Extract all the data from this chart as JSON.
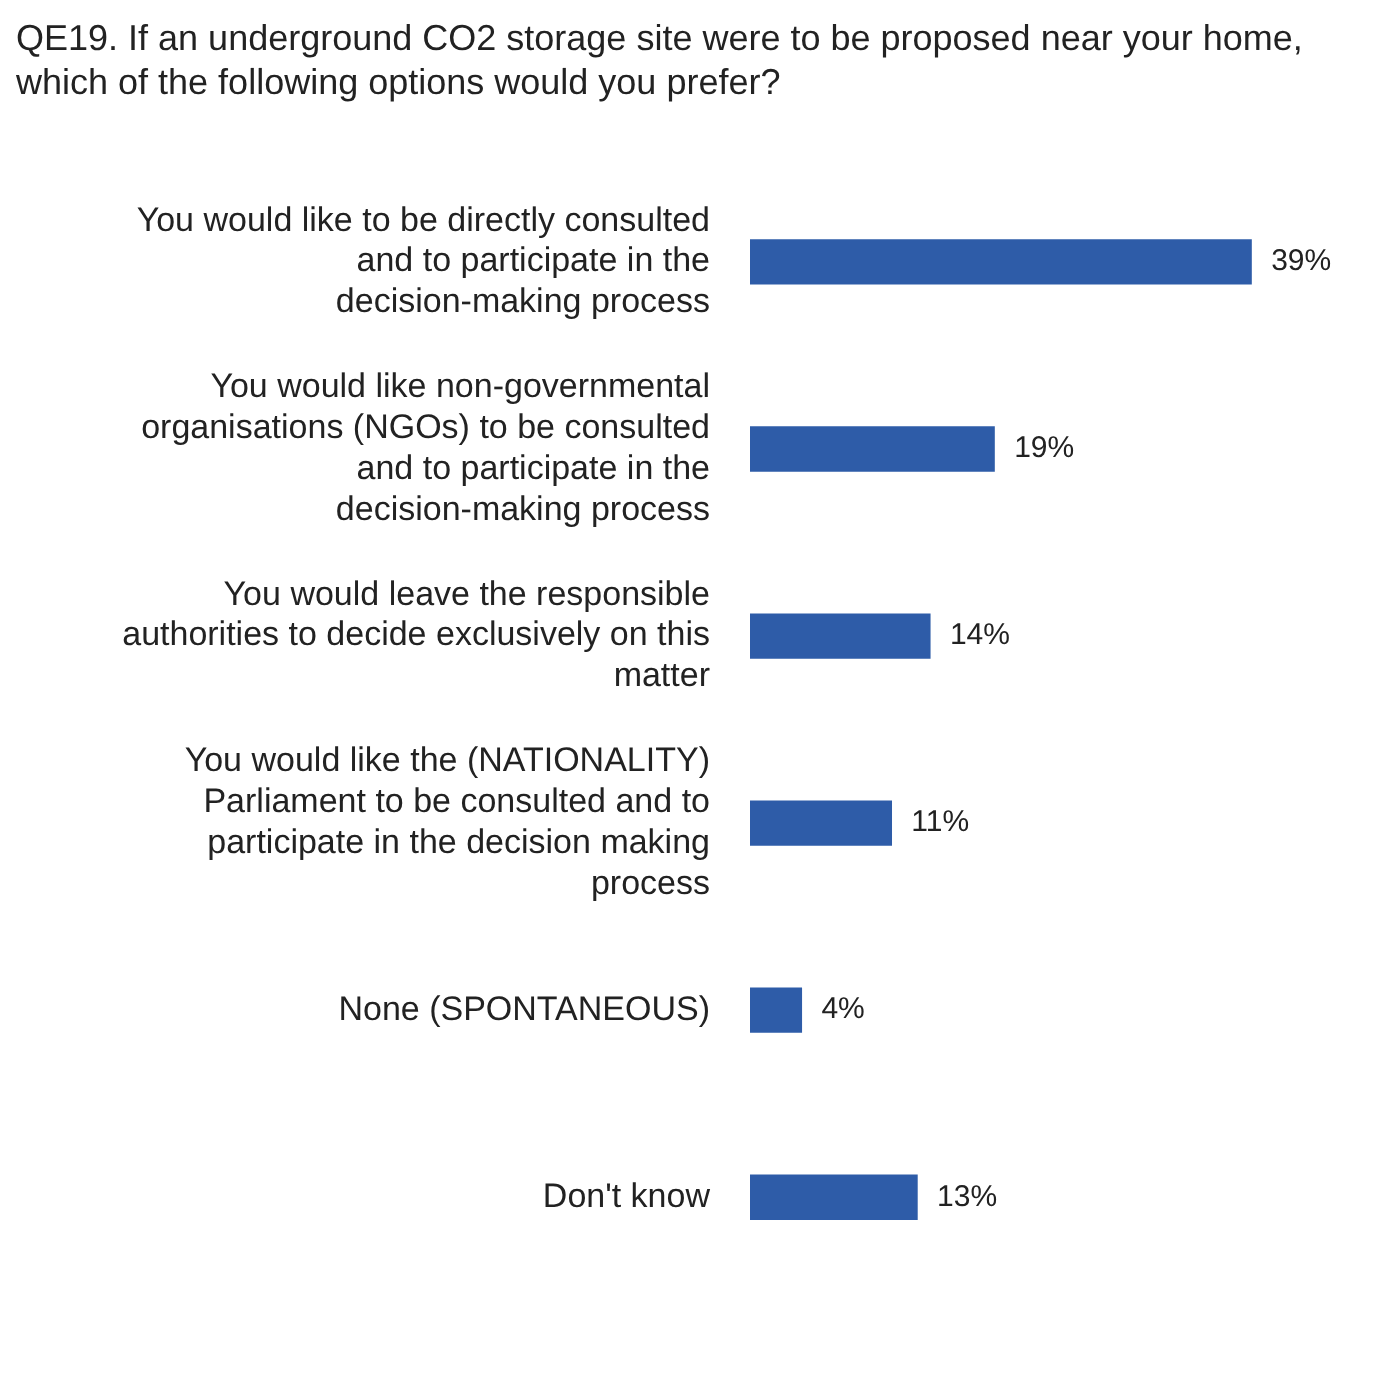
{
  "chart_data": {
    "type": "bar",
    "orientation": "horizontal",
    "title": "QE19. If an underground CO2 storage site were to be proposed near your home, which of the following options would you prefer?",
    "categories": [
      "You would like to be directly consulted and to participate in the decision-making process",
      "You would like non-governmental organisations (NGOs) to be consulted and to participate in the decision-making process",
      "You would leave the responsible authorities to decide exclusively on this matter",
      "You would like the (NATIONALITY) Parliament to be consulted and to participate in the decision making process",
      "None (SPONTANEOUS)",
      "Don't know"
    ],
    "values": [
      39,
      19,
      14,
      11,
      4,
      13
    ],
    "value_labels": [
      "39%",
      "19%",
      "14%",
      "11%",
      "4%",
      "13%"
    ],
    "color": "#2e5ca8"
  }
}
